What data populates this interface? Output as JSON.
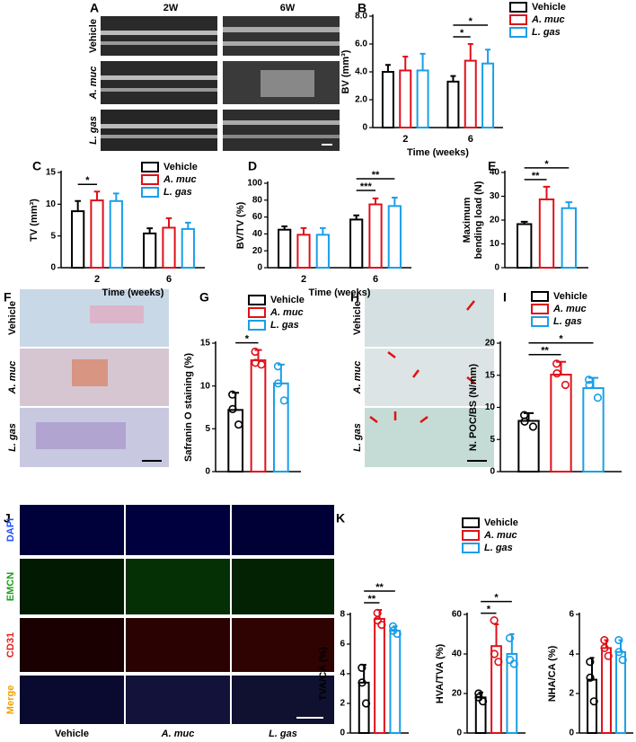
{
  "figure": {
    "panel_letters": [
      "A",
      "B",
      "C",
      "D",
      "E",
      "F",
      "G",
      "H",
      "I",
      "J",
      "K"
    ],
    "panel_A": {
      "columns": [
        "2W",
        "6W"
      ],
      "rows": [
        "Vehicle",
        "A. muc",
        "L. gas"
      ]
    },
    "panel_F": {
      "rows": [
        "Vehicle",
        "A. muc",
        "L. gas"
      ]
    },
    "panel_H": {
      "rows": [
        "Vehicle",
        "A. muc",
        "L. gas"
      ]
    },
    "panel_J": {
      "rows": [
        "DAPI",
        "EMCN",
        "CD31",
        "Merge"
      ],
      "row_colors": [
        "#1f4fff",
        "#1aa01a",
        "#e0201a",
        "#f0a000"
      ],
      "columns": [
        "Vehicle",
        "A. muc",
        "L. gas"
      ]
    }
  },
  "chart_data": [
    {
      "type": "bar",
      "ylabel": "BV (mm³)",
      "xlabel": "Time (weeks)",
      "categories": [
        "2",
        "6"
      ],
      "ylim": [
        0,
        8
      ],
      "yticks": [
        0,
        {
          "value": 2,
          "label": "2.0"
        },
        {
          "value": 4,
          "label": "4.0"
        },
        {
          "value": 6,
          "label": "6.0"
        },
        {
          "value": 8,
          "label": "8.0"
        }
      ],
      "series": [
        {
          "name": "Vehicle",
          "color": "#000000",
          "values": [
            4.0,
            3.3
          ],
          "errors": [
            0.5,
            0.4
          ]
        },
        {
          "name": "A. muc",
          "color": "#e0101a",
          "values": [
            4.1,
            4.8
          ],
          "errors": [
            1.0,
            1.2
          ]
        },
        {
          "name": "L. gas",
          "color": "#1a9fe8",
          "values": [
            4.1,
            4.6
          ],
          "errors": [
            1.2,
            1.0
          ]
        }
      ],
      "annotations": [
        {
          "label": "*",
          "category": 1,
          "series": [
            0,
            1
          ]
        },
        {
          "label": "*",
          "category": 1,
          "series": [
            0,
            2
          ]
        }
      ]
    },
    {
      "type": "bar",
      "ylabel": "TV (mm³)",
      "xlabel": "Time (weeks)",
      "categories": [
        "2",
        "6"
      ],
      "ylim": [
        0,
        15
      ],
      "yticks": [
        0,
        5,
        10,
        15
      ],
      "series": [
        {
          "name": "Vehicle",
          "color": "#000000",
          "values": [
            8.9,
            5.4
          ],
          "errors": [
            1.6,
            0.8
          ]
        },
        {
          "name": "A. muc",
          "color": "#e0101a",
          "values": [
            10.6,
            6.3
          ],
          "errors": [
            1.4,
            1.5
          ]
        },
        {
          "name": "L. gas",
          "color": "#1a9fe8",
          "values": [
            10.5,
            6.1
          ],
          "errors": [
            1.2,
            1.0
          ]
        }
      ],
      "annotations": [
        {
          "label": "*",
          "category": 0,
          "series": [
            0,
            1
          ]
        }
      ]
    },
    {
      "type": "bar",
      "ylabel": "BV/TV (%)",
      "xlabel": "Time (weeks)",
      "categories": [
        "2",
        "6"
      ],
      "ylim": [
        0,
        100
      ],
      "yticks": [
        0,
        20,
        40,
        60,
        80,
        100
      ],
      "series": [
        {
          "color": "#000000",
          "values": [
            45,
            57
          ],
          "errors": [
            4,
            5
          ]
        },
        {
          "color": "#e0101a",
          "values": [
            39,
            75
          ],
          "errors": [
            8,
            7
          ]
        },
        {
          "color": "#1a9fe8",
          "values": [
            39,
            73
          ],
          "errors": [
            8,
            10
          ]
        }
      ],
      "annotations": [
        {
          "label": "***",
          "category": 1,
          "series": [
            0,
            1
          ]
        },
        {
          "label": "**",
          "category": 1,
          "series": [
            0,
            2
          ]
        }
      ]
    },
    {
      "type": "bar",
      "ylabel": [
        "Maximum",
        "bending load (N)"
      ],
      "categories": [
        null
      ],
      "ylim": [
        0,
        40
      ],
      "yticks": [
        0,
        10,
        20,
        30,
        40
      ],
      "series": [
        {
          "color": "#000000",
          "values": [
            18.3
          ],
          "errors": [
            1.0
          ]
        },
        {
          "color": "#e0101a",
          "values": [
            28.7
          ],
          "errors": [
            5.3
          ]
        },
        {
          "color": "#1a9fe8",
          "values": [
            25.0
          ],
          "errors": [
            2.5
          ]
        }
      ],
      "annotations": [
        {
          "label": "**",
          "category": 0,
          "series": [
            0,
            1
          ]
        },
        {
          "label": "*",
          "category": 0,
          "series": [
            0,
            2
          ]
        }
      ]
    },
    {
      "type": "bar",
      "ylabel": "Safranin O staining (%)",
      "categories": [
        null
      ],
      "ylim": [
        0,
        15
      ],
      "yticks": [
        0,
        5,
        10,
        15
      ],
      "series": [
        {
          "name": "Vehicle",
          "color": "#000000",
          "values": [
            7.2
          ],
          "errors": [
            2.0
          ],
          "points": [
            [
              9.0,
              7.3,
              5.5
            ]
          ]
        },
        {
          "name": "A. muc",
          "color": "#e0101a",
          "values": [
            13.0
          ],
          "errors": [
            1.2
          ],
          "points": [
            [
              14.0,
              12.7,
              12.5
            ]
          ]
        },
        {
          "name": "L. gas",
          "color": "#1a9fe8",
          "values": [
            10.3
          ],
          "errors": [
            2.2
          ],
          "points": [
            [
              12.3,
              10.3,
              8.3
            ]
          ]
        }
      ],
      "annotations": [
        {
          "label": "*",
          "category": 0,
          "series": [
            0,
            1
          ]
        }
      ]
    },
    {
      "type": "bar",
      "ylabel": "N. POC/BS (N/mm)",
      "categories": [
        null
      ],
      "ylim": [
        0,
        20
      ],
      "yticks": [
        0,
        5,
        10,
        15,
        20
      ],
      "series": [
        {
          "name": "Vehicle",
          "color": "#000000",
          "values": [
            7.9
          ],
          "errors": [
            1.2
          ],
          "points": [
            [
              8.8,
              7.8,
              7.0
            ]
          ]
        },
        {
          "name": "A. muc",
          "color": "#e0101a",
          "values": [
            15.1
          ],
          "errors": [
            2.0
          ],
          "points": [
            [
              16.8,
              15.3,
              13.5
            ]
          ]
        },
        {
          "name": "L. gas",
          "color": "#1a9fe8",
          "values": [
            13.0
          ],
          "errors": [
            1.6
          ],
          "points": [
            [
              14.3,
              13.5,
              11.5
            ]
          ]
        }
      ],
      "annotations": [
        {
          "label": "**",
          "category": 0,
          "series": [
            0,
            1
          ]
        },
        {
          "label": "*",
          "category": 0,
          "series": [
            0,
            2
          ]
        }
      ]
    },
    {
      "type": "bar",
      "ylabel": "TVA/CA (%)",
      "categories": [
        null
      ],
      "ylim": [
        0,
        8
      ],
      "yticks": [
        0,
        2,
        4,
        6,
        8
      ],
      "series": [
        {
          "name": "Vehicle",
          "color": "#000000",
          "values": [
            3.4
          ],
          "errors": [
            1.2
          ],
          "points": [
            [
              4.4,
              3.4,
              2.0
            ]
          ]
        },
        {
          "name": "A. muc",
          "color": "#e0101a",
          "values": [
            7.7
          ],
          "errors": [
            0.6
          ],
          "points": [
            [
              8.1,
              7.6,
              7.3
            ]
          ]
        },
        {
          "name": "L. gas",
          "color": "#1a9fe8",
          "values": [
            6.9
          ],
          "errors": [
            0.3
          ],
          "points": [
            [
              7.2,
              6.9,
              6.7
            ]
          ]
        }
      ],
      "annotations": [
        {
          "label": "**",
          "category": 0,
          "series": [
            0,
            1
          ]
        },
        {
          "label": "**",
          "category": 0,
          "series": [
            0,
            2
          ]
        }
      ]
    },
    {
      "type": "bar",
      "ylabel": "HVA/TVA (%)",
      "categories": [
        null
      ],
      "ylim": [
        0,
        60
      ],
      "yticks": [
        0,
        20,
        40,
        60
      ],
      "series": [
        {
          "color": "#000000",
          "values": [
            18
          ],
          "errors": [
            2.5
          ],
          "points": [
            [
              20,
              18,
              16
            ]
          ]
        },
        {
          "color": "#e0101a",
          "values": [
            44
          ],
          "errors": [
            11
          ],
          "points": [
            [
              57,
              40,
              36
            ]
          ]
        },
        {
          "color": "#1a9fe8",
          "values": [
            40
          ],
          "errors": [
            10
          ],
          "points": [
            [
              48,
              37,
              35
            ]
          ]
        }
      ],
      "annotations": [
        {
          "label": "*",
          "category": 0,
          "series": [
            0,
            1
          ]
        },
        {
          "label": "*",
          "category": 0,
          "series": [
            0,
            2
          ]
        }
      ]
    },
    {
      "type": "bar",
      "ylabel": "NHA/CA (%)",
      "categories": [
        null
      ],
      "ylim": [
        0,
        6
      ],
      "yticks": [
        0,
        2,
        4,
        6
      ],
      "series": [
        {
          "color": "#000000",
          "values": [
            2.7
          ],
          "errors": [
            1.1
          ],
          "points": [
            [
              3.6,
              2.8,
              1.6
            ]
          ]
        },
        {
          "color": "#e0101a",
          "values": [
            4.3
          ],
          "errors": [
            0.4
          ],
          "points": [
            [
              4.7,
              4.3,
              3.9
            ]
          ]
        },
        {
          "color": "#1a9fe8",
          "values": [
            4.1
          ],
          "errors": [
            0.6
          ],
          "points": [
            [
              4.7,
              4.1,
              3.7
            ]
          ]
        }
      ]
    }
  ]
}
